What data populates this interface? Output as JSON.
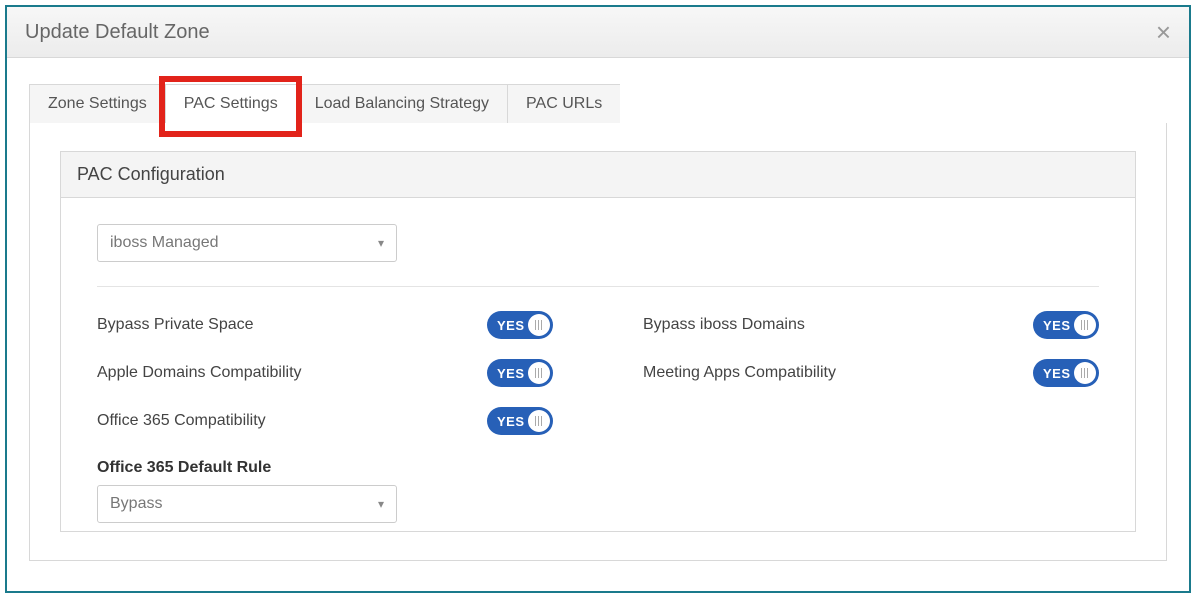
{
  "dialog": {
    "title": "Update Default Zone"
  },
  "tabs": {
    "zone_settings": "Zone Settings",
    "pac_settings": "PAC Settings",
    "load_balancing": "Load Balancing Strategy",
    "pac_urls": "PAC URLs",
    "active_index": 1,
    "highlight_index": 1
  },
  "panel": {
    "title": "PAC Configuration"
  },
  "managed_select": {
    "value": "iboss Managed"
  },
  "toggles": {
    "bypass_private_space": {
      "label": "Bypass Private Space",
      "text": "YES",
      "on": true
    },
    "bypass_iboss_domains": {
      "label": "Bypass iboss Domains",
      "text": "YES",
      "on": true
    },
    "apple_domains": {
      "label": "Apple Domains Compatibility",
      "text": "YES",
      "on": true
    },
    "meeting_apps": {
      "label": "Meeting Apps Compatibility",
      "text": "YES",
      "on": true
    },
    "office365": {
      "label": "Office 365 Compatibility",
      "text": "YES",
      "on": true
    }
  },
  "office365_rule": {
    "label": "Office 365 Default Rule",
    "value": "Bypass"
  },
  "colors": {
    "dialog_border": "#1a7a8c",
    "highlight": "#e2231a",
    "toggle_bg": "#2760b7"
  }
}
